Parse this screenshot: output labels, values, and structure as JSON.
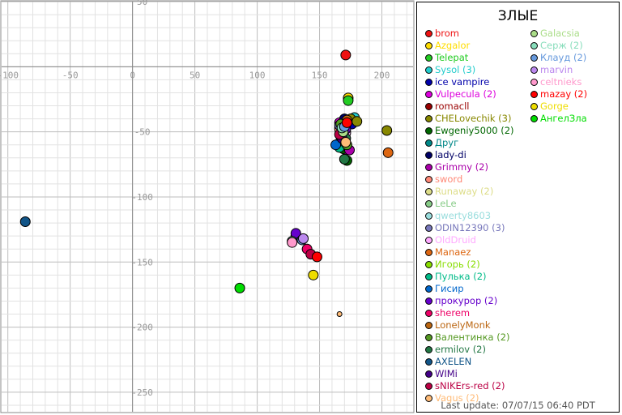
{
  "chart_data": {
    "type": "scatter",
    "title": "",
    "xlabel": "",
    "ylabel": "",
    "xlim": [
      -105,
      225
    ],
    "ylim": [
      -265,
      50
    ],
    "x_ticks": [
      -100,
      -50,
      0,
      50,
      100,
      150,
      200
    ],
    "y_ticks": [
      50,
      -50,
      -100,
      -150,
      -200,
      -250
    ],
    "grid": true,
    "legend_title": "ЗЛЫЕ",
    "legend_position": "right",
    "last_update": "Last update: 07/07/15 06:40 PDT",
    "series": [
      {
        "name": "brom",
        "color": "#ee1111",
        "points": [
          [
            171,
            9
          ]
        ]
      },
      {
        "name": "Azgalor",
        "color": "#ffdd00",
        "points": [
          [
            173,
            -24
          ]
        ]
      },
      {
        "name": "Telepat",
        "color": "#22cc22",
        "points": [
          [
            173,
            -26
          ]
        ]
      },
      {
        "name": "Sysol (3)",
        "color": "#22cccc",
        "points": [
          [
            178,
            -39
          ],
          [
            166,
            -47
          ],
          [
            170,
            -42
          ]
        ]
      },
      {
        "name": "ice vampire",
        "color": "#0000aa",
        "points": [
          [
            176,
            -44
          ]
        ]
      },
      {
        "name": "Vulpecula (2)",
        "color": "#dd00dd",
        "points": [
          [
            166,
            -43
          ],
          [
            171,
            -64
          ]
        ]
      },
      {
        "name": "romacll",
        "color": "#990000",
        "points": [
          [
            171,
            -45
          ]
        ]
      },
      {
        "name": "CHELovechik (3)",
        "color": "#888800",
        "points": [
          [
            175,
            -40
          ],
          [
            180,
            -42
          ],
          [
            204,
            -49
          ]
        ]
      },
      {
        "name": "Ewgeniy5000 (2)",
        "color": "#006600",
        "points": [
          [
            169,
            -63
          ],
          [
            172,
            -72
          ]
        ]
      },
      {
        "name": "Друг",
        "color": "#008888",
        "points": [
          [
            167,
            -46
          ]
        ]
      },
      {
        "name": "lady-di",
        "color": "#000066",
        "points": [
          [
            170,
            -40
          ]
        ]
      },
      {
        "name": "Grimmy (2)",
        "color": "#aa00aa",
        "points": [
          [
            168,
            -53
          ],
          [
            174,
            -64
          ]
        ]
      },
      {
        "name": "sword",
        "color": "#ff8877",
        "points": [
          [
            166,
            -48
          ]
        ]
      },
      {
        "name": "Runaway (2)",
        "color": "#dddd88",
        "points": [
          [
            171,
            -50
          ],
          [
            168,
            -52
          ]
        ]
      },
      {
        "name": "LeLe",
        "color": "#88cc88",
        "points": [
          [
            170,
            -48
          ]
        ]
      },
      {
        "name": "qwerty8603",
        "color": "#99dddd",
        "points": [
          [
            169,
            -47
          ]
        ]
      },
      {
        "name": "ODIN12390 (3)",
        "color": "#7777bb",
        "points": [
          [
            166,
            -45
          ],
          [
            169,
            -55
          ],
          [
            131,
            -130
          ]
        ]
      },
      {
        "name": "OldDruid",
        "color": "#ffaaff",
        "points": [
          [
            171,
            -51
          ]
        ]
      },
      {
        "name": "Manaez",
        "color": "#dd6611",
        "points": [
          [
            205,
            -66
          ]
        ]
      },
      {
        "name": "Игорь (2)",
        "color": "#88dd00",
        "points": [
          [
            169,
            -57
          ],
          [
            170,
            -59
          ]
        ]
      },
      {
        "name": "Пулька (2)",
        "color": "#00bb88",
        "points": [
          [
            166,
            -62
          ],
          [
            167,
            -57
          ]
        ]
      },
      {
        "name": "Гисир",
        "color": "#0066cc",
        "points": [
          [
            163,
            -60
          ]
        ]
      },
      {
        "name": "прокурор (2)",
        "color": "#6600cc",
        "points": [
          [
            131,
            -128
          ],
          [
            171,
            -48
          ]
        ]
      },
      {
        "name": "sherem",
        "color": "#ee0066",
        "points": [
          [
            140,
            -140
          ]
        ]
      },
      {
        "name": "LonelyMonk",
        "color": "#bb6611",
        "points": [
          [
            172,
            -41
          ]
        ]
      },
      {
        "name": "Валентинка (2)",
        "color": "#559922",
        "points": [
          [
            167,
            -44
          ],
          [
            172,
            -60
          ]
        ]
      },
      {
        "name": "ermilov (2)",
        "color": "#227744",
        "points": [
          [
            170,
            -71
          ],
          [
            171,
            -55
          ]
        ]
      },
      {
        "name": "AXELEN",
        "color": "#115588",
        "points": [
          [
            -86,
            -119
          ]
        ]
      },
      {
        "name": "WIMi",
        "color": "#440088",
        "points": [
          [
            168,
            -55
          ]
        ]
      },
      {
        "name": "sNIKErs-red (2)",
        "color": "#bb0044",
        "points": [
          [
            143,
            -144
          ],
          [
            166,
            -52
          ]
        ]
      },
      {
        "name": "Vagus (2)",
        "color": "#ffbb77",
        "points": [
          [
            166,
            -190
          ],
          [
            171,
            -58
          ]
        ]
      },
      {
        "name": "Galacsia",
        "color": "#aadd88",
        "points": [
          [
            169,
            -50
          ]
        ]
      },
      {
        "name": "Серж (2)",
        "color": "#88ddbb",
        "points": [
          [
            128,
            -134
          ],
          [
            168,
            -47
          ]
        ]
      },
      {
        "name": "Клауд (2)",
        "color": "#6699dd",
        "points": [
          [
            136,
            -133
          ],
          [
            170,
            -46
          ]
        ]
      },
      {
        "name": "marvin",
        "color": "#bb88ee",
        "points": [
          [
            137,
            -132
          ]
        ]
      },
      {
        "name": "celtnieks",
        "color": "#ff99cc",
        "points": [
          [
            128,
            -135
          ]
        ]
      },
      {
        "name": "mazay (2)",
        "color": "#ff0000",
        "points": [
          [
            148,
            -146
          ],
          [
            172,
            -43
          ]
        ]
      },
      {
        "name": "Gorge",
        "color": "#eedd00",
        "points": [
          [
            145,
            -160
          ]
        ]
      },
      {
        "name": "АнгелЗла",
        "color": "#00dd00",
        "points": [
          [
            86,
            -170
          ]
        ]
      }
    ]
  }
}
